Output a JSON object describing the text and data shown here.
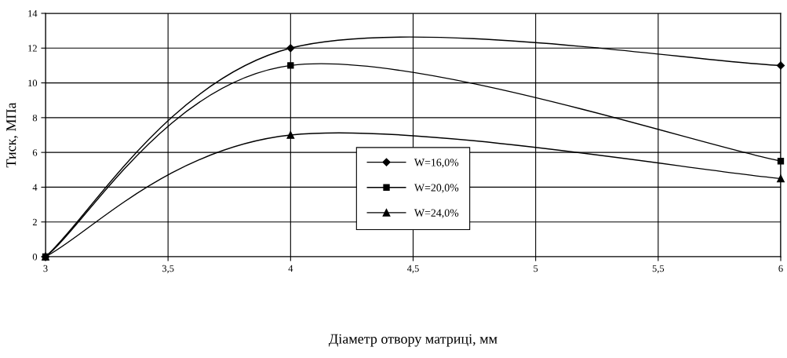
{
  "chart_data": {
    "type": "line",
    "xlabel": "Діаметр отвору матриці, мм",
    "ylabel": "Тиск, МПа",
    "x": [
      3,
      4,
      6
    ],
    "series": [
      {
        "name": "W=16,0%",
        "color": "#000000",
        "marker": "diamond",
        "values": [
          0,
          12,
          11
        ]
      },
      {
        "name": "W=20,0%",
        "color": "#000000",
        "marker": "square",
        "values": [
          0,
          11,
          5.5
        ]
      },
      {
        "name": "W=24,0%",
        "color": "#000000",
        "marker": "triangle",
        "values": [
          0,
          7,
          4.5
        ]
      }
    ],
    "xlim": [
      3,
      6
    ],
    "xticks": [
      3,
      {
        "value": 3.5,
        "label": "3,5"
      },
      4,
      {
        "value": 4.5,
        "label": "4,5"
      },
      5,
      {
        "value": 5.5,
        "label": "5,5"
      },
      6
    ],
    "ylim": [
      0,
      14
    ],
    "yticks": [
      0,
      2,
      4,
      6,
      8,
      10,
      12,
      14
    ],
    "grid": true,
    "legend": "bottom",
    "line_style": "solid"
  }
}
